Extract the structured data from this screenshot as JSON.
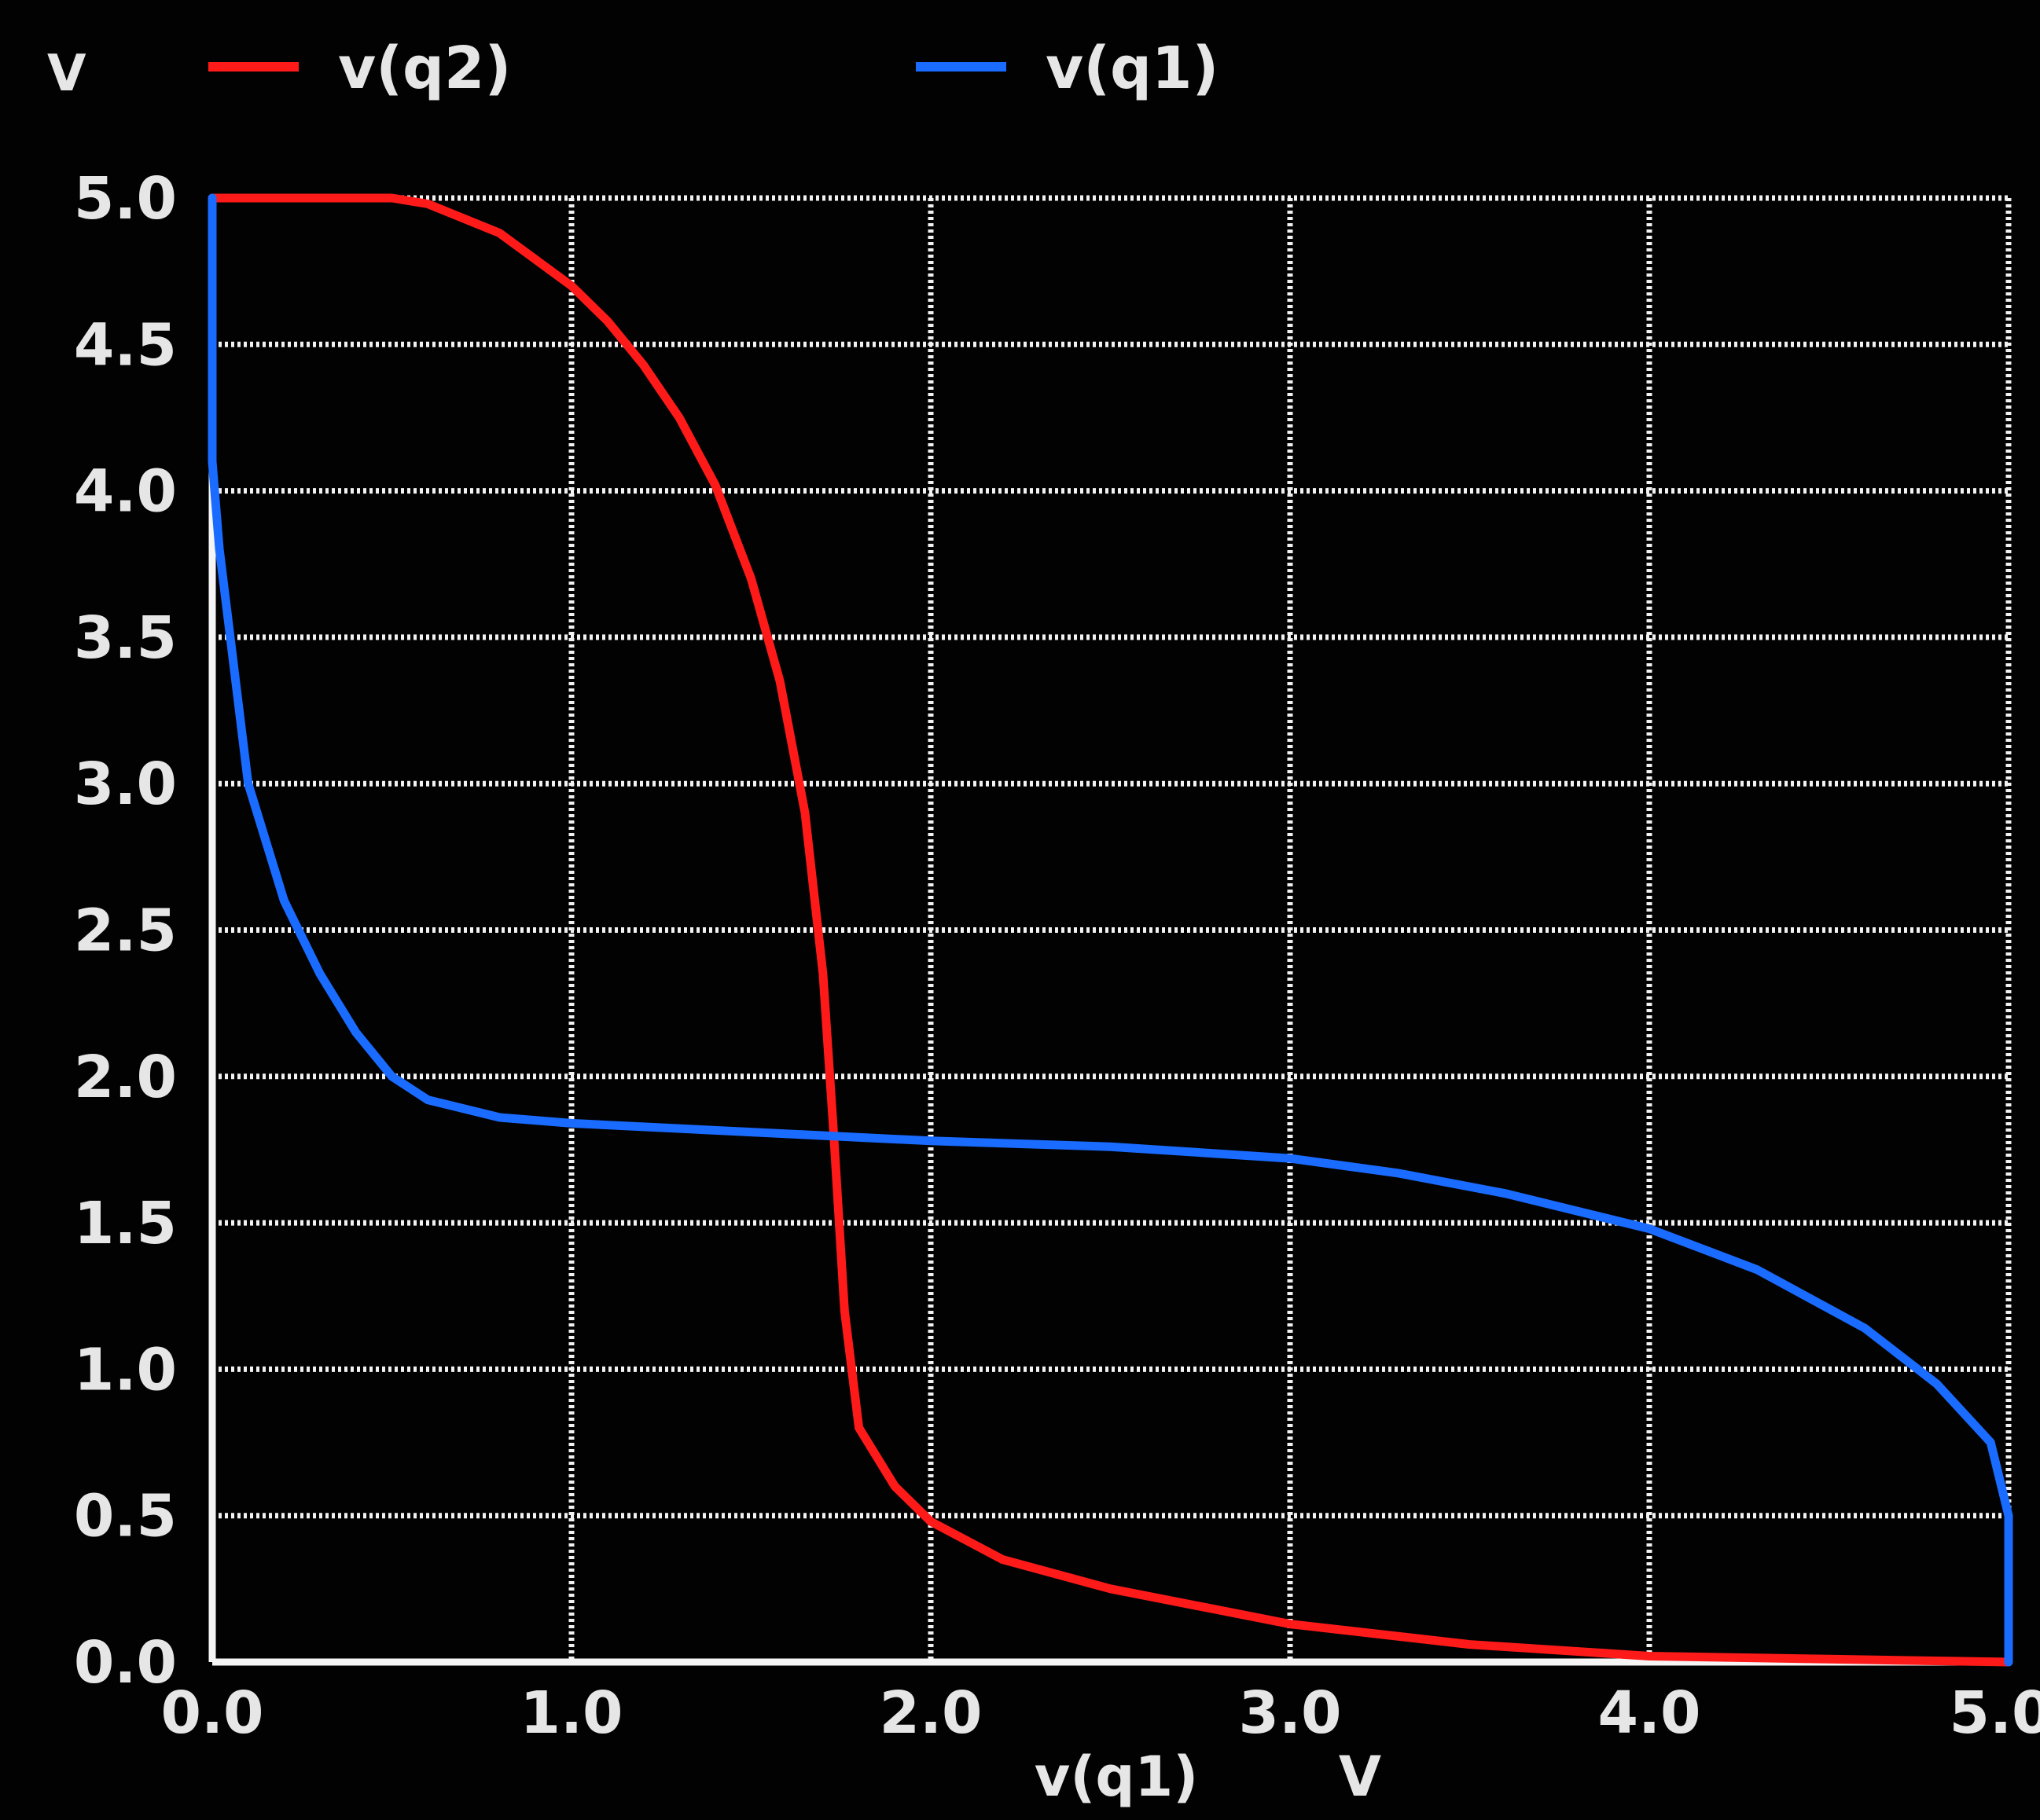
{
  "chart_data": {
    "type": "line",
    "y_unit_label": "V",
    "xlabel": "v(q1)",
    "x_unit_label": "V",
    "xlim": [
      0,
      5
    ],
    "ylim": [
      0,
      5
    ],
    "x_ticks": [
      "0.0",
      "1.0",
      "2.0",
      "3.0",
      "4.0",
      "5.0"
    ],
    "y_ticks": [
      "0.0",
      "0.5",
      "1.0",
      "1.5",
      "2.0",
      "2.5",
      "3.0",
      "3.5",
      "4.0",
      "4.5",
      "5.0"
    ],
    "grid": true,
    "legend_position": "top",
    "series": [
      {
        "name": "v(q2)",
        "color": "#ff1a1a",
        "points": [
          [
            0.0,
            5.0
          ],
          [
            0.5,
            5.0
          ],
          [
            0.6,
            4.98
          ],
          [
            0.8,
            4.88
          ],
          [
            1.0,
            4.7
          ],
          [
            1.1,
            4.58
          ],
          [
            1.2,
            4.43
          ],
          [
            1.3,
            4.25
          ],
          [
            1.4,
            4.02
          ],
          [
            1.5,
            3.7
          ],
          [
            1.58,
            3.35
          ],
          [
            1.65,
            2.9
          ],
          [
            1.7,
            2.35
          ],
          [
            1.73,
            1.8
          ],
          [
            1.76,
            1.2
          ],
          [
            1.8,
            0.8
          ],
          [
            1.9,
            0.6
          ],
          [
            2.0,
            0.48
          ],
          [
            2.2,
            0.35
          ],
          [
            2.5,
            0.25
          ],
          [
            3.0,
            0.13
          ],
          [
            3.5,
            0.06
          ],
          [
            4.0,
            0.02
          ],
          [
            4.5,
            0.01
          ],
          [
            5.0,
            0.0
          ]
        ]
      },
      {
        "name": "v(q1)",
        "color": "#1a6bff",
        "points": [
          [
            0.0,
            5.0
          ],
          [
            0.0,
            4.1
          ],
          [
            0.02,
            3.8
          ],
          [
            0.05,
            3.5
          ],
          [
            0.1,
            3.0
          ],
          [
            0.2,
            2.6
          ],
          [
            0.3,
            2.35
          ],
          [
            0.4,
            2.15
          ],
          [
            0.5,
            2.0
          ],
          [
            0.6,
            1.92
          ],
          [
            0.8,
            1.86
          ],
          [
            1.0,
            1.84
          ],
          [
            1.5,
            1.81
          ],
          [
            2.0,
            1.78
          ],
          [
            2.5,
            1.76
          ],
          [
            3.0,
            1.72
          ],
          [
            3.3,
            1.67
          ],
          [
            3.6,
            1.6
          ],
          [
            4.0,
            1.48
          ],
          [
            4.3,
            1.34
          ],
          [
            4.6,
            1.14
          ],
          [
            4.8,
            0.95
          ],
          [
            4.95,
            0.75
          ],
          [
            5.0,
            0.5
          ],
          [
            5.0,
            0.0
          ]
        ]
      }
    ]
  }
}
